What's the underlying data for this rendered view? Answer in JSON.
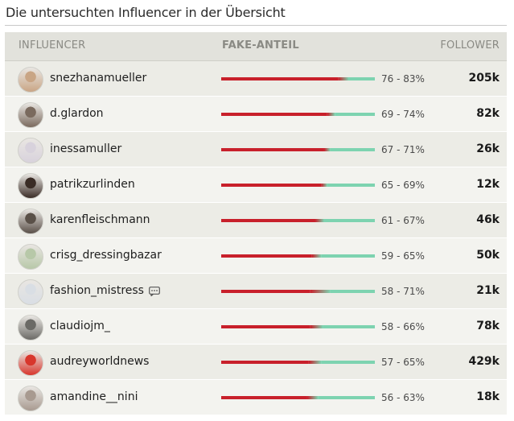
{
  "title": "Die untersuchten Influencer in der Übersicht",
  "header": {
    "influencer": "INFLUENCER",
    "fake": "FAKE-ANTEIL",
    "follower": "FOLLOWER"
  },
  "colors": {
    "fake": "#c8202b",
    "real": "#7dd3b0"
  },
  "chart_data": {
    "type": "table",
    "columns": [
      "INFLUENCER",
      "FAKE-ANTEIL",
      "FOLLOWER"
    ],
    "xlim": [
      0,
      100
    ],
    "rows": [
      {
        "name": "snezhanamueller",
        "fake_min": 76,
        "fake_max": 83,
        "range": "76 - 83%",
        "followers": "205k",
        "has_comment": false
      },
      {
        "name": "d.glardon",
        "fake_min": 69,
        "fake_max": 74,
        "range": "69 - 74%",
        "followers": "82k",
        "has_comment": false
      },
      {
        "name": "inessamuller",
        "fake_min": 67,
        "fake_max": 71,
        "range": "67 - 71%",
        "followers": "26k",
        "has_comment": false
      },
      {
        "name": "patrikzurlinden",
        "fake_min": 65,
        "fake_max": 69,
        "range": "65 - 69%",
        "followers": "12k",
        "has_comment": false
      },
      {
        "name": "karenfleischmann",
        "fake_min": 61,
        "fake_max": 67,
        "range": "61 - 67%",
        "followers": "46k",
        "has_comment": false
      },
      {
        "name": "crisg_dressingbazar",
        "fake_min": 59,
        "fake_max": 65,
        "range": "59 - 65%",
        "followers": "50k",
        "has_comment": false
      },
      {
        "name": "fashion_mistress",
        "fake_min": 58,
        "fake_max": 71,
        "range": "58 - 71%",
        "followers": "21k",
        "has_comment": true
      },
      {
        "name": "claudiojm_",
        "fake_min": 58,
        "fake_max": 66,
        "range": "58 - 66%",
        "followers": "78k",
        "has_comment": false
      },
      {
        "name": "audreyworldnews",
        "fake_min": 57,
        "fake_max": 65,
        "range": "57 - 65%",
        "followers": "429k",
        "has_comment": false
      },
      {
        "name": "amandine__nini",
        "fake_min": 56,
        "fake_max": 63,
        "range": "56 - 63%",
        "followers": "18k",
        "has_comment": false
      }
    ]
  },
  "avatars": [
    "#c9a585",
    "#7a6a5e",
    "#d8d2dc",
    "#3a2c26",
    "#5a5048",
    "#b7c8a8",
    "#d9dee4",
    "#6b6a66",
    "#d8362c",
    "#a89a90"
  ]
}
